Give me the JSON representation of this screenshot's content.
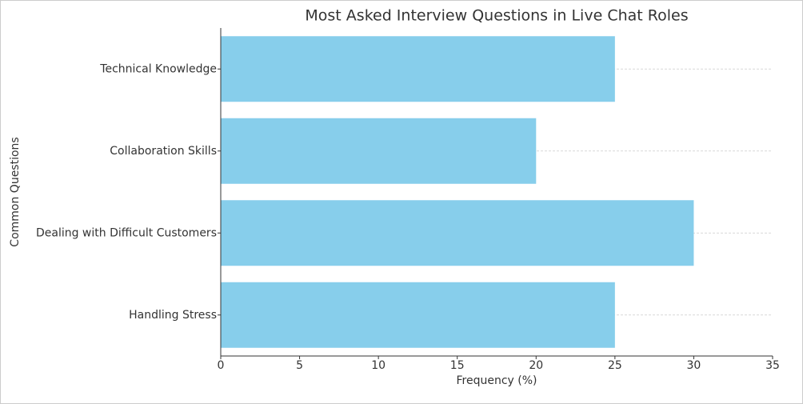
{
  "chart_data": {
    "type": "barh",
    "title": "Most Asked Interview Questions in Live Chat Roles",
    "x_label": "Frequency (%)",
    "y_label": "Common Questions",
    "categories": [
      "Handling Stress",
      "Dealing with Difficult Customers",
      "Collaboration Skills",
      "Technical Knowledge"
    ],
    "values": [
      25,
      30,
      20,
      25
    ],
    "color": "#87ceeb",
    "xlim": [
      0,
      35
    ],
    "xticks": [
      0,
      5,
      10,
      15,
      20,
      25,
      30,
      35
    ],
    "grid": true
  }
}
